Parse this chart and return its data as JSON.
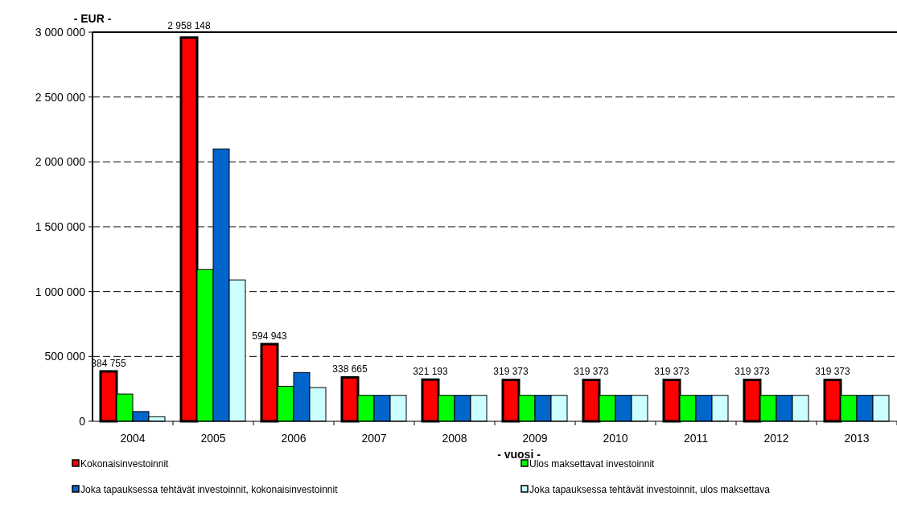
{
  "chart_data": {
    "type": "bar",
    "ylabel": "- EUR -",
    "xlabel": "- vuosi -",
    "categories": [
      "2004",
      "2005",
      "2006",
      "2007",
      "2008",
      "2009",
      "2010",
      "2011",
      "2012",
      "2013"
    ],
    "series": [
      {
        "name": "Kokonaisinvestoinnit",
        "color": "#ff0000",
        "values": [
          384755,
          2958148,
          594943,
          338665,
          321193,
          319373,
          319373,
          319373,
          319373,
          319373
        ],
        "value_labels": [
          "384 755",
          "2 958 148",
          "594 943",
          "338 665",
          "321 193",
          "319 373",
          "319 373",
          "319 373",
          "319 373",
          "319 373"
        ]
      },
      {
        "name": "Ulos maksettavat investoinnit",
        "color": "#00ff00",
        "values": [
          210000,
          1170000,
          270000,
          200000,
          200000,
          200000,
          200000,
          200000,
          200000,
          200000
        ]
      },
      {
        "name": "Joka tapauksessa tehtävät investoinnit, kokonaisinvestoinnit",
        "color": "#0066cc",
        "values": [
          75000,
          2100000,
          376000,
          200000,
          200000,
          200000,
          200000,
          200000,
          200000,
          200000
        ]
      },
      {
        "name": "Joka tapauksessa tehtävät investoinnit, ulos maksettava",
        "color": "#ccffff",
        "values": [
          35000,
          1090000,
          260000,
          200000,
          200000,
          200000,
          200000,
          200000,
          200000,
          200000
        ]
      }
    ],
    "ylim": [
      0,
      3000000
    ],
    "yticks": [
      {
        "value": 0,
        "label": "0"
      },
      {
        "value": 500000,
        "label": "500 000"
      },
      {
        "value": 1000000,
        "label": "1 000 000"
      },
      {
        "value": 1500000,
        "label": "1 500 000"
      },
      {
        "value": 2000000,
        "label": "2 000 000"
      },
      {
        "value": 2500000,
        "label": "2 500 000"
      },
      {
        "value": 3000000,
        "label": "3 000 000"
      }
    ],
    "grid": "y",
    "legend": "bottom"
  }
}
